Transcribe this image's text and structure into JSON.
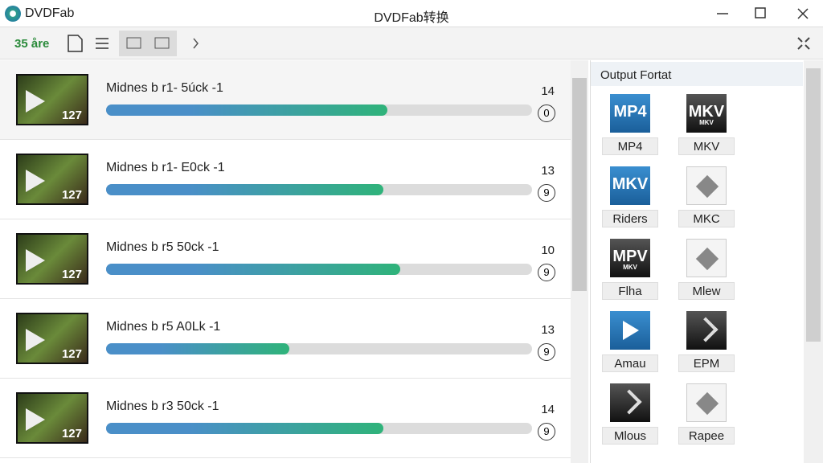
{
  "window": {
    "app_name": "DVDFab",
    "title": "DVDFab转换"
  },
  "toolbar": {
    "label": "35 åre"
  },
  "tasks": [
    {
      "title": "Midnes b r1- 5úck -1",
      "thumb": "127",
      "count": "14",
      "badge": "0",
      "progress": 66
    },
    {
      "title": "Midnes b r1- E0ck -1",
      "thumb": "127",
      "count": "13",
      "badge": "9",
      "progress": 65
    },
    {
      "title": "Midnes b r5 50ck -1",
      "thumb": "127",
      "count": "10",
      "badge": "9",
      "progress": 69
    },
    {
      "title": "Midnes b r5 A0Lk -1",
      "thumb": "127",
      "count": "13",
      "badge": "9",
      "progress": 43
    },
    {
      "title": "Midnes b r3 50ck -1",
      "thumb": "127",
      "count": "14",
      "badge": "9",
      "progress": 65
    }
  ],
  "output": {
    "header": "Output Fortat",
    "formats": [
      {
        "icon": "MP4",
        "style": "blue",
        "label": "MP4"
      },
      {
        "icon": "MKV",
        "sub": "MKV",
        "style": "dark",
        "label": "MKV"
      },
      {
        "icon": "MKV",
        "style": "blue",
        "label": "Riders"
      },
      {
        "style": "doc",
        "label": "MKC"
      },
      {
        "icon": "MPV",
        "sub": "MKV",
        "style": "dark",
        "label": "Flha"
      },
      {
        "style": "doc",
        "label": "Mlew"
      },
      {
        "style": "play",
        "label": "Amau"
      },
      {
        "style": "arrow",
        "label": "EPM"
      },
      {
        "style": "arrow",
        "label": "Mlous"
      },
      {
        "style": "doc",
        "label": "Rapee"
      }
    ]
  }
}
